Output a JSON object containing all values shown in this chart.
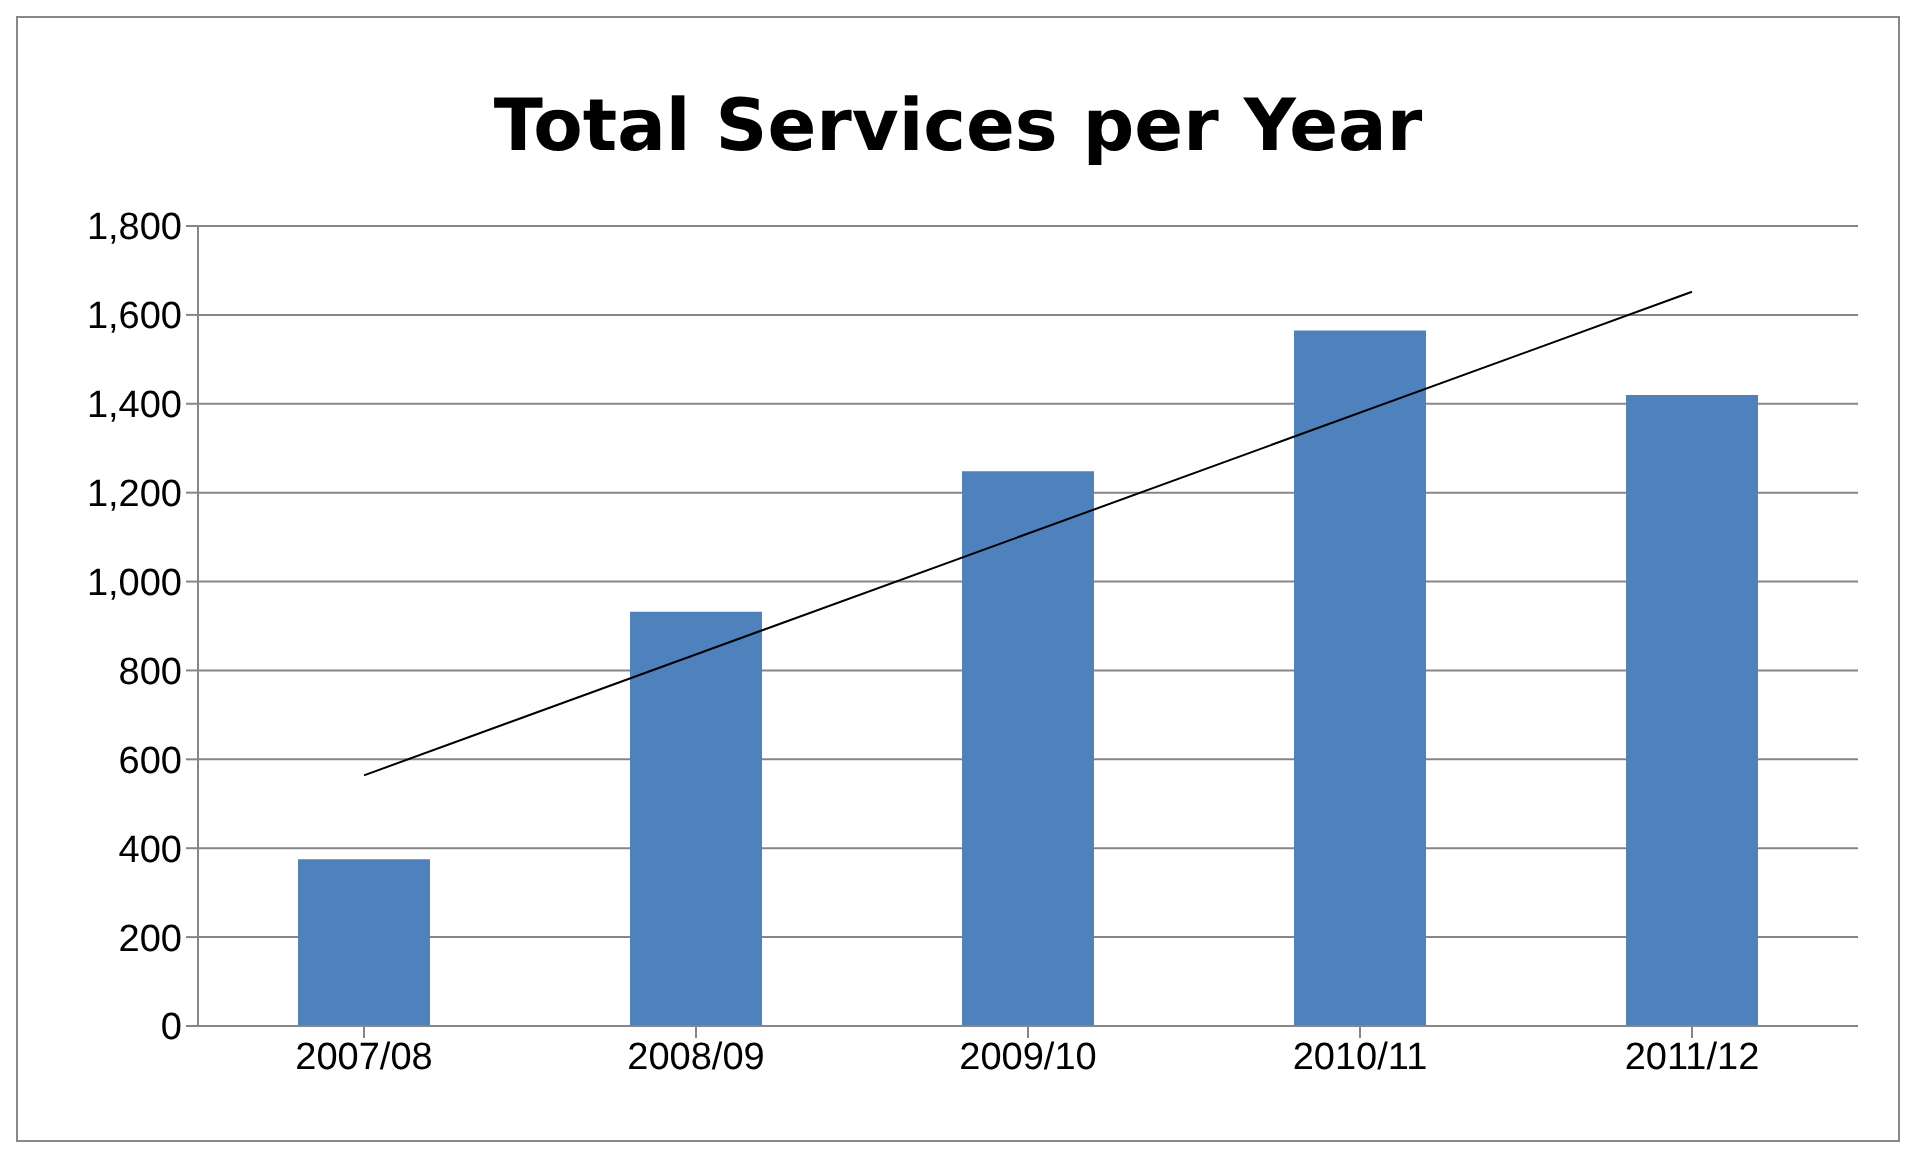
{
  "chart_data": {
    "type": "bar",
    "title": "Total Services per Year",
    "categories": [
      "2007/08",
      "2008/09",
      "2009/10",
      "2010/11",
      "2011/12"
    ],
    "series": [
      {
        "color": "#4f81bd",
        "values": [
          375,
          932,
          1248,
          1565,
          1420
        ]
      },
      {
        "type": "line",
        "color": "#000000",
        "x": [
          "2007/08",
          "2011/12"
        ],
        "values": [
          564,
          1652
        ]
      }
    ],
    "ylim": [
      0,
      1800
    ],
    "yticks": [
      0,
      200,
      400,
      600,
      800,
      {
        "value": 1000,
        "label": "1,000"
      },
      {
        "value": 1200,
        "label": "1,200"
      },
      {
        "value": 1400,
        "label": "1,400"
      },
      {
        "value": 1600,
        "label": "1,600"
      },
      {
        "value": 1800,
        "label": "1,800"
      }
    ],
    "grid": "y",
    "legend": false,
    "marker": "none"
  }
}
